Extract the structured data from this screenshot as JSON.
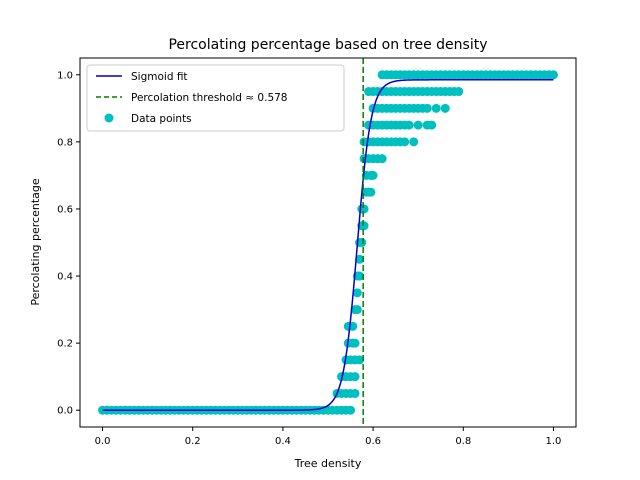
{
  "chart_data": {
    "type": "scatter",
    "title": "Percolating percentage based on tree density",
    "xlabel": "Tree density",
    "ylabel": "Percolating percentage",
    "xlim": [
      -0.05,
      1.05
    ],
    "ylim": [
      -0.05,
      1.05
    ],
    "xticks": [
      0.0,
      0.2,
      0.4,
      0.6,
      0.8,
      1.0
    ],
    "xtick_labels": [
      "0.0",
      "0.2",
      "0.4",
      "0.6",
      "0.8",
      "1.0"
    ],
    "yticks": [
      0.0,
      0.2,
      0.4,
      0.6,
      0.8,
      1.0
    ],
    "ytick_labels": [
      "0.0",
      "0.2",
      "0.4",
      "0.6",
      "0.8",
      "1.0"
    ],
    "grid": false,
    "legend": "upper-left",
    "legend_entries": [
      "Sigmoid fit",
      "Percolation threshold ≈ 0.578",
      "Data points"
    ],
    "colors": {
      "fit": "#0000cc",
      "threshold": "#008000",
      "points": "#00bfbf"
    },
    "threshold": 0.578,
    "sigmoid": {
      "L": 0.985,
      "x0": 0.565,
      "k": 65
    },
    "scatter_points": [
      [
        0.0,
        0
      ],
      [
        0.01,
        0
      ],
      [
        0.02,
        0
      ],
      [
        0.03,
        0
      ],
      [
        0.04,
        0
      ],
      [
        0.05,
        0
      ],
      [
        0.06,
        0
      ],
      [
        0.07,
        0
      ],
      [
        0.08,
        0
      ],
      [
        0.09,
        0
      ],
      [
        0.1,
        0
      ],
      [
        0.11,
        0
      ],
      [
        0.12,
        0
      ],
      [
        0.13,
        0
      ],
      [
        0.14,
        0
      ],
      [
        0.15,
        0
      ],
      [
        0.16,
        0
      ],
      [
        0.17,
        0
      ],
      [
        0.18,
        0
      ],
      [
        0.19,
        0
      ],
      [
        0.2,
        0
      ],
      [
        0.21,
        0
      ],
      [
        0.22,
        0
      ],
      [
        0.23,
        0
      ],
      [
        0.24,
        0
      ],
      [
        0.25,
        0
      ],
      [
        0.26,
        0
      ],
      [
        0.27,
        0
      ],
      [
        0.28,
        0
      ],
      [
        0.29,
        0
      ],
      [
        0.3,
        0
      ],
      [
        0.31,
        0
      ],
      [
        0.32,
        0
      ],
      [
        0.33,
        0
      ],
      [
        0.34,
        0
      ],
      [
        0.35,
        0
      ],
      [
        0.36,
        0
      ],
      [
        0.37,
        0
      ],
      [
        0.38,
        0
      ],
      [
        0.39,
        0
      ],
      [
        0.4,
        0
      ],
      [
        0.41,
        0
      ],
      [
        0.42,
        0
      ],
      [
        0.43,
        0
      ],
      [
        0.44,
        0
      ],
      [
        0.45,
        0
      ],
      [
        0.46,
        0
      ],
      [
        0.47,
        0
      ],
      [
        0.48,
        0
      ],
      [
        0.49,
        0
      ],
      [
        0.5,
        0
      ],
      [
        0.51,
        0
      ],
      [
        0.52,
        0
      ],
      [
        0.53,
        0
      ],
      [
        0.54,
        0
      ],
      [
        0.55,
        0
      ],
      [
        0.52,
        0.05
      ],
      [
        0.53,
        0.05
      ],
      [
        0.54,
        0.05
      ],
      [
        0.55,
        0.05
      ],
      [
        0.56,
        0.05
      ],
      [
        0.53,
        0.1
      ],
      [
        0.54,
        0.1
      ],
      [
        0.55,
        0.1
      ],
      [
        0.56,
        0.1
      ],
      [
        0.54,
        0.15
      ],
      [
        0.55,
        0.15
      ],
      [
        0.56,
        0.15
      ],
      [
        0.57,
        0.15
      ],
      [
        0.545,
        0.2
      ],
      [
        0.555,
        0.2
      ],
      [
        0.56,
        0.2
      ],
      [
        0.545,
        0.25
      ],
      [
        0.555,
        0.25
      ],
      [
        0.56,
        0.3
      ],
      [
        0.565,
        0.3
      ],
      [
        0.565,
        0.35
      ],
      [
        0.565,
        0.4
      ],
      [
        0.57,
        0.4
      ],
      [
        0.57,
        0.45
      ],
      [
        0.57,
        0.5
      ],
      [
        0.575,
        0.5
      ],
      [
        0.575,
        0.55
      ],
      [
        0.58,
        0.55
      ],
      [
        0.575,
        0.6
      ],
      [
        0.58,
        0.6
      ],
      [
        0.585,
        0.65
      ],
      [
        0.59,
        0.65
      ],
      [
        0.595,
        0.65
      ],
      [
        0.585,
        0.7
      ],
      [
        0.595,
        0.7
      ],
      [
        0.6,
        0.7
      ],
      [
        0.58,
        0.75
      ],
      [
        0.59,
        0.75
      ],
      [
        0.6,
        0.75
      ],
      [
        0.61,
        0.75
      ],
      [
        0.62,
        0.75
      ],
      [
        0.58,
        0.8
      ],
      [
        0.59,
        0.8
      ],
      [
        0.6,
        0.8
      ],
      [
        0.61,
        0.8
      ],
      [
        0.62,
        0.8
      ],
      [
        0.63,
        0.8
      ],
      [
        0.64,
        0.8
      ],
      [
        0.65,
        0.8
      ],
      [
        0.66,
        0.8
      ],
      [
        0.67,
        0.8
      ],
      [
        0.69,
        0.8
      ],
      [
        0.59,
        0.85
      ],
      [
        0.6,
        0.85
      ],
      [
        0.61,
        0.85
      ],
      [
        0.62,
        0.85
      ],
      [
        0.63,
        0.85
      ],
      [
        0.64,
        0.85
      ],
      [
        0.65,
        0.85
      ],
      [
        0.66,
        0.85
      ],
      [
        0.67,
        0.85
      ],
      [
        0.68,
        0.85
      ],
      [
        0.7,
        0.85
      ],
      [
        0.72,
        0.85
      ],
      [
        0.73,
        0.85
      ],
      [
        0.6,
        0.9
      ],
      [
        0.61,
        0.9
      ],
      [
        0.62,
        0.9
      ],
      [
        0.63,
        0.9
      ],
      [
        0.64,
        0.9
      ],
      [
        0.65,
        0.9
      ],
      [
        0.66,
        0.9
      ],
      [
        0.67,
        0.9
      ],
      [
        0.68,
        0.9
      ],
      [
        0.69,
        0.9
      ],
      [
        0.7,
        0.9
      ],
      [
        0.71,
        0.9
      ],
      [
        0.72,
        0.9
      ],
      [
        0.74,
        0.9
      ],
      [
        0.76,
        0.9
      ],
      [
        0.59,
        0.95
      ],
      [
        0.6,
        0.95
      ],
      [
        0.61,
        0.95
      ],
      [
        0.62,
        0.95
      ],
      [
        0.63,
        0.95
      ],
      [
        0.64,
        0.95
      ],
      [
        0.65,
        0.95
      ],
      [
        0.66,
        0.95
      ],
      [
        0.67,
        0.95
      ],
      [
        0.68,
        0.95
      ],
      [
        0.69,
        0.95
      ],
      [
        0.7,
        0.95
      ],
      [
        0.71,
        0.95
      ],
      [
        0.72,
        0.95
      ],
      [
        0.73,
        0.95
      ],
      [
        0.74,
        0.95
      ],
      [
        0.75,
        0.95
      ],
      [
        0.76,
        0.95
      ],
      [
        0.77,
        0.95
      ],
      [
        0.78,
        0.95
      ],
      [
        0.79,
        0.95
      ],
      [
        0.62,
        1.0
      ],
      [
        0.63,
        1.0
      ],
      [
        0.64,
        1.0
      ],
      [
        0.65,
        1.0
      ],
      [
        0.66,
        1.0
      ],
      [
        0.67,
        1.0
      ],
      [
        0.68,
        1.0
      ],
      [
        0.69,
        1.0
      ],
      [
        0.7,
        1.0
      ],
      [
        0.71,
        1.0
      ],
      [
        0.72,
        1.0
      ],
      [
        0.73,
        1.0
      ],
      [
        0.74,
        1.0
      ],
      [
        0.75,
        1.0
      ],
      [
        0.76,
        1.0
      ],
      [
        0.77,
        1.0
      ],
      [
        0.78,
        1.0
      ],
      [
        0.79,
        1.0
      ],
      [
        0.8,
        1.0
      ],
      [
        0.81,
        1.0
      ],
      [
        0.82,
        1.0
      ],
      [
        0.83,
        1.0
      ],
      [
        0.84,
        1.0
      ],
      [
        0.85,
        1.0
      ],
      [
        0.86,
        1.0
      ],
      [
        0.87,
        1.0
      ],
      [
        0.88,
        1.0
      ],
      [
        0.89,
        1.0
      ],
      [
        0.9,
        1.0
      ],
      [
        0.91,
        1.0
      ],
      [
        0.92,
        1.0
      ],
      [
        0.93,
        1.0
      ],
      [
        0.94,
        1.0
      ],
      [
        0.95,
        1.0
      ],
      [
        0.96,
        1.0
      ],
      [
        0.97,
        1.0
      ],
      [
        0.98,
        1.0
      ],
      [
        0.99,
        1.0
      ],
      [
        1.0,
        1.0
      ]
    ]
  }
}
